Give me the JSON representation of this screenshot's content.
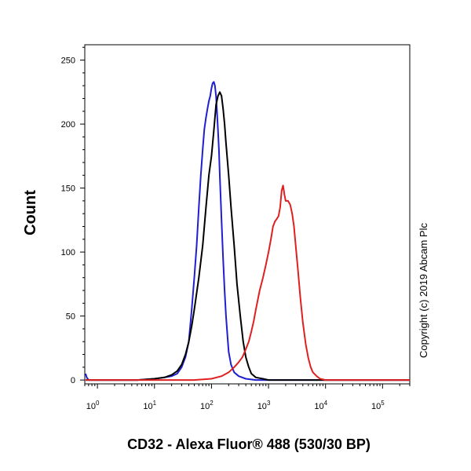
{
  "chart_data": {
    "type": "line",
    "title": "",
    "xlabel": "CD32 - Alexa Fluor® 488 (530/30 BP)",
    "ylabel": "Count",
    "xscale": "log",
    "xlim": [
      0.6,
      300000
    ],
    "ylim": [
      -3,
      262
    ],
    "x_ticks": [
      {
        "value": 1,
        "base": "10",
        "exp": "0"
      },
      {
        "value": 10,
        "base": "10",
        "exp": "1"
      },
      {
        "value": 100,
        "base": "10",
        "exp": "2"
      },
      {
        "value": 1000,
        "base": "10",
        "exp": "3"
      },
      {
        "value": 10000,
        "base": "10",
        "exp": "4"
      },
      {
        "value": 100000,
        "base": "10",
        "exp": "5"
      }
    ],
    "y_ticks": [
      0,
      50,
      100,
      150,
      200,
      250
    ],
    "grid": false,
    "legend": "none",
    "annotation": "Copyright (c) 2019 Abcam Plc",
    "series": [
      {
        "color": "#1f1fd0",
        "x": [
          0.62,
          0.65,
          0.7,
          0.8,
          1,
          2,
          5,
          10,
          15,
          20,
          25,
          30,
          35,
          40,
          45,
          50,
          55,
          60,
          65,
          70,
          75,
          80,
          85,
          90,
          95,
          100,
          105,
          110,
          115,
          120,
          125,
          130,
          135,
          140,
          150,
          160,
          170,
          180,
          190,
          200,
          220,
          250,
          300,
          400,
          600,
          1000,
          10000,
          300000
        ],
        "y": [
          5,
          2,
          0,
          0,
          0,
          0,
          0,
          1,
          2,
          3,
          5,
          10,
          18,
          30,
          55,
          80,
          105,
          135,
          160,
          180,
          196,
          205,
          212,
          218,
          222,
          228,
          232,
          233,
          230,
          222,
          210,
          195,
          180,
          160,
          125,
          95,
          70,
          50,
          35,
          22,
          12,
          6,
          3,
          1,
          0,
          0,
          0,
          0
        ]
      },
      {
        "color": "#000000",
        "x": [
          0.62,
          1,
          5,
          10,
          15,
          20,
          25,
          30,
          35,
          40,
          45,
          50,
          60,
          70,
          80,
          90,
          100,
          110,
          120,
          130,
          140,
          150,
          160,
          170,
          180,
          200,
          220,
          250,
          280,
          320,
          360,
          400,
          450,
          500,
          600,
          800,
          1000,
          10000,
          300000
        ],
        "y": [
          0,
          0,
          0,
          1,
          2,
          4,
          7,
          12,
          20,
          30,
          42,
          55,
          80,
          105,
          135,
          160,
          175,
          195,
          215,
          222,
          225,
          222,
          212,
          200,
          185,
          160,
          135,
          105,
          75,
          50,
          30,
          18,
          10,
          5,
          2,
          1,
          0,
          0,
          0
        ]
      },
      {
        "color": "#e02020",
        "x": [
          0.62,
          1,
          10,
          50,
          100,
          150,
          200,
          250,
          300,
          350,
          400,
          450,
          500,
          550,
          600,
          650,
          700,
          800,
          900,
          1000,
          1100,
          1200,
          1300,
          1400,
          1500,
          1600,
          1700,
          1800,
          1900,
          2000,
          2200,
          2400,
          2600,
          2800,
          3000,
          3300,
          3600,
          4000,
          4500,
          5000,
          5500,
          6000,
          7000,
          8000,
          9000,
          10000,
          12000,
          15000,
          20000,
          50000,
          300000
        ],
        "y": [
          0,
          0,
          0,
          0,
          1,
          3,
          6,
          10,
          14,
          18,
          24,
          30,
          38,
          46,
          55,
          63,
          70,
          80,
          90,
          100,
          110,
          120,
          124,
          126,
          128,
          135,
          148,
          152,
          145,
          140,
          140,
          137,
          130,
          120,
          105,
          85,
          65,
          45,
          28,
          17,
          10,
          6,
          3,
          1,
          0.5,
          0,
          0,
          0,
          0,
          0,
          0
        ]
      }
    ]
  }
}
